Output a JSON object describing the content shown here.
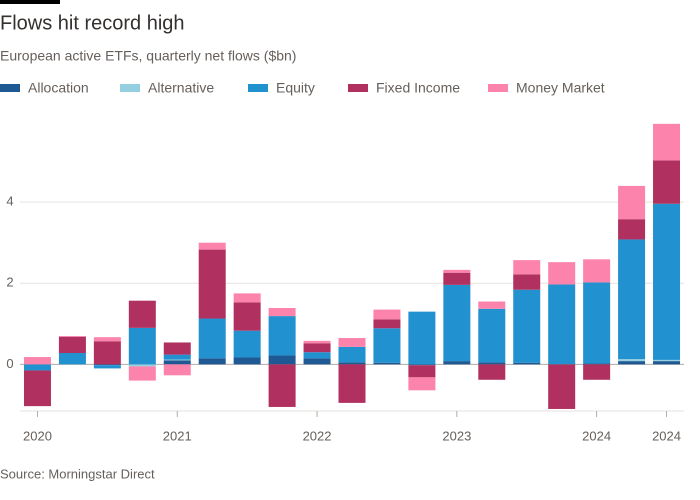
{
  "chart_data": {
    "type": "stacked-bar",
    "title": "Flows hit record high",
    "subtitle": "European active ETFs, quarterly net flows ($bn)",
    "source": "Source: Morningstar Direct",
    "categories": [
      "2020",
      null,
      null,
      null,
      "2021",
      null,
      null,
      null,
      "2022",
      null,
      null,
      null,
      "2023",
      null,
      null,
      null,
      "2024",
      null,
      "2024"
    ],
    "series": [
      {
        "name": "Allocation",
        "color": "#1f5994",
        "values": [
          0,
          0,
          -0.02,
          0,
          0.1,
          0.15,
          0.17,
          0.22,
          0.15,
          0.05,
          0.04,
          -0.02,
          0.08,
          0.05,
          0.04,
          0,
          0.02,
          0.08,
          0.08
        ]
      },
      {
        "name": "Alternative",
        "color": "#96cfe2",
        "values": [
          0,
          0,
          0,
          -0.05,
          0.02,
          0,
          0,
          0,
          0,
          0,
          0,
          0,
          0,
          0,
          0,
          0,
          0,
          0.05,
          0.03
        ]
      },
      {
        "name": "Equity",
        "color": "#2291d0",
        "values": [
          -0.15,
          0.28,
          -0.08,
          0.9,
          0.12,
          0.98,
          0.66,
          0.97,
          0.15,
          0.38,
          0.85,
          1.3,
          1.88,
          1.32,
          1.8,
          1.97,
          2.0,
          2.95,
          3.85
        ]
      },
      {
        "name": "Fixed Income",
        "color": "#b0315f",
        "values": [
          -0.88,
          0.4,
          0.57,
          0.67,
          0.3,
          1.7,
          0.7,
          -1.05,
          0.22,
          -0.95,
          0.22,
          -0.3,
          0.3,
          -0.38,
          0.38,
          -1.1,
          -0.38,
          0.5,
          1.07
        ]
      },
      {
        "name": "Money Market",
        "color": "#fc83ac",
        "values": [
          0.18,
          0.02,
          0.1,
          -0.35,
          -0.27,
          0.17,
          0.22,
          0.2,
          0.06,
          0.22,
          0.24,
          -0.32,
          0.07,
          0.18,
          0.35,
          0.55,
          0.57,
          0.82,
          0.9
        ]
      }
    ],
    "ylim": [
      -1.15,
      6.05
    ],
    "yticks": [
      0,
      2,
      4
    ],
    "grid": true
  }
}
